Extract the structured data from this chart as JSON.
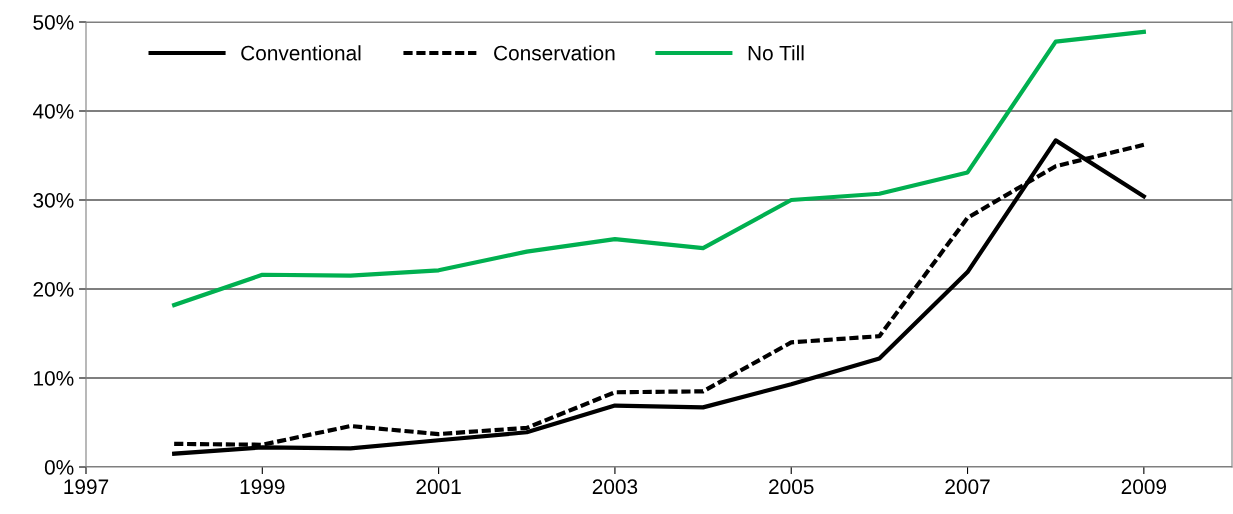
{
  "chart_data": {
    "type": "line",
    "x": [
      1998,
      1999,
      2000,
      2001,
      2002,
      2003,
      2004,
      2005,
      2006,
      2007,
      2008,
      2009
    ],
    "series": [
      {
        "name": "Conventional",
        "color": "#000000",
        "line_style": "solid",
        "values": [
          1.5,
          2.2,
          2.1,
          3.0,
          3.9,
          6.9,
          6.7,
          9.3,
          12.2,
          21.9,
          36.7,
          30.4
        ]
      },
      {
        "name": "Conservation",
        "color": "#000000",
        "line_style": "dashed",
        "values": [
          2.6,
          2.5,
          4.6,
          3.7,
          4.4,
          8.4,
          8.5,
          14.0,
          14.7,
          28.0,
          33.8,
          36.2
        ]
      },
      {
        "name": "No Till",
        "color": "#00b050",
        "line_style": "solid",
        "values": [
          18.2,
          21.6,
          21.5,
          22.1,
          24.2,
          25.6,
          24.6,
          30.0,
          30.7,
          33.1,
          47.8,
          48.9
        ]
      }
    ],
    "xlim": [
      1997,
      2010
    ],
    "xticks": [
      1997,
      1999,
      2001,
      2003,
      2005,
      2007,
      2009
    ],
    "ylim": [
      0,
      50
    ],
    "yticks": [
      {
        "value": 0,
        "label": "0%"
      },
      {
        "value": 10,
        "label": "10%"
      },
      {
        "value": 20,
        "label": "20%"
      },
      {
        "value": 30,
        "label": "30%"
      },
      {
        "value": 40,
        "label": "40%"
      },
      {
        "value": 50,
        "label": "50%"
      }
    ],
    "grid": "y",
    "legend": "top left",
    "marker": "none"
  }
}
